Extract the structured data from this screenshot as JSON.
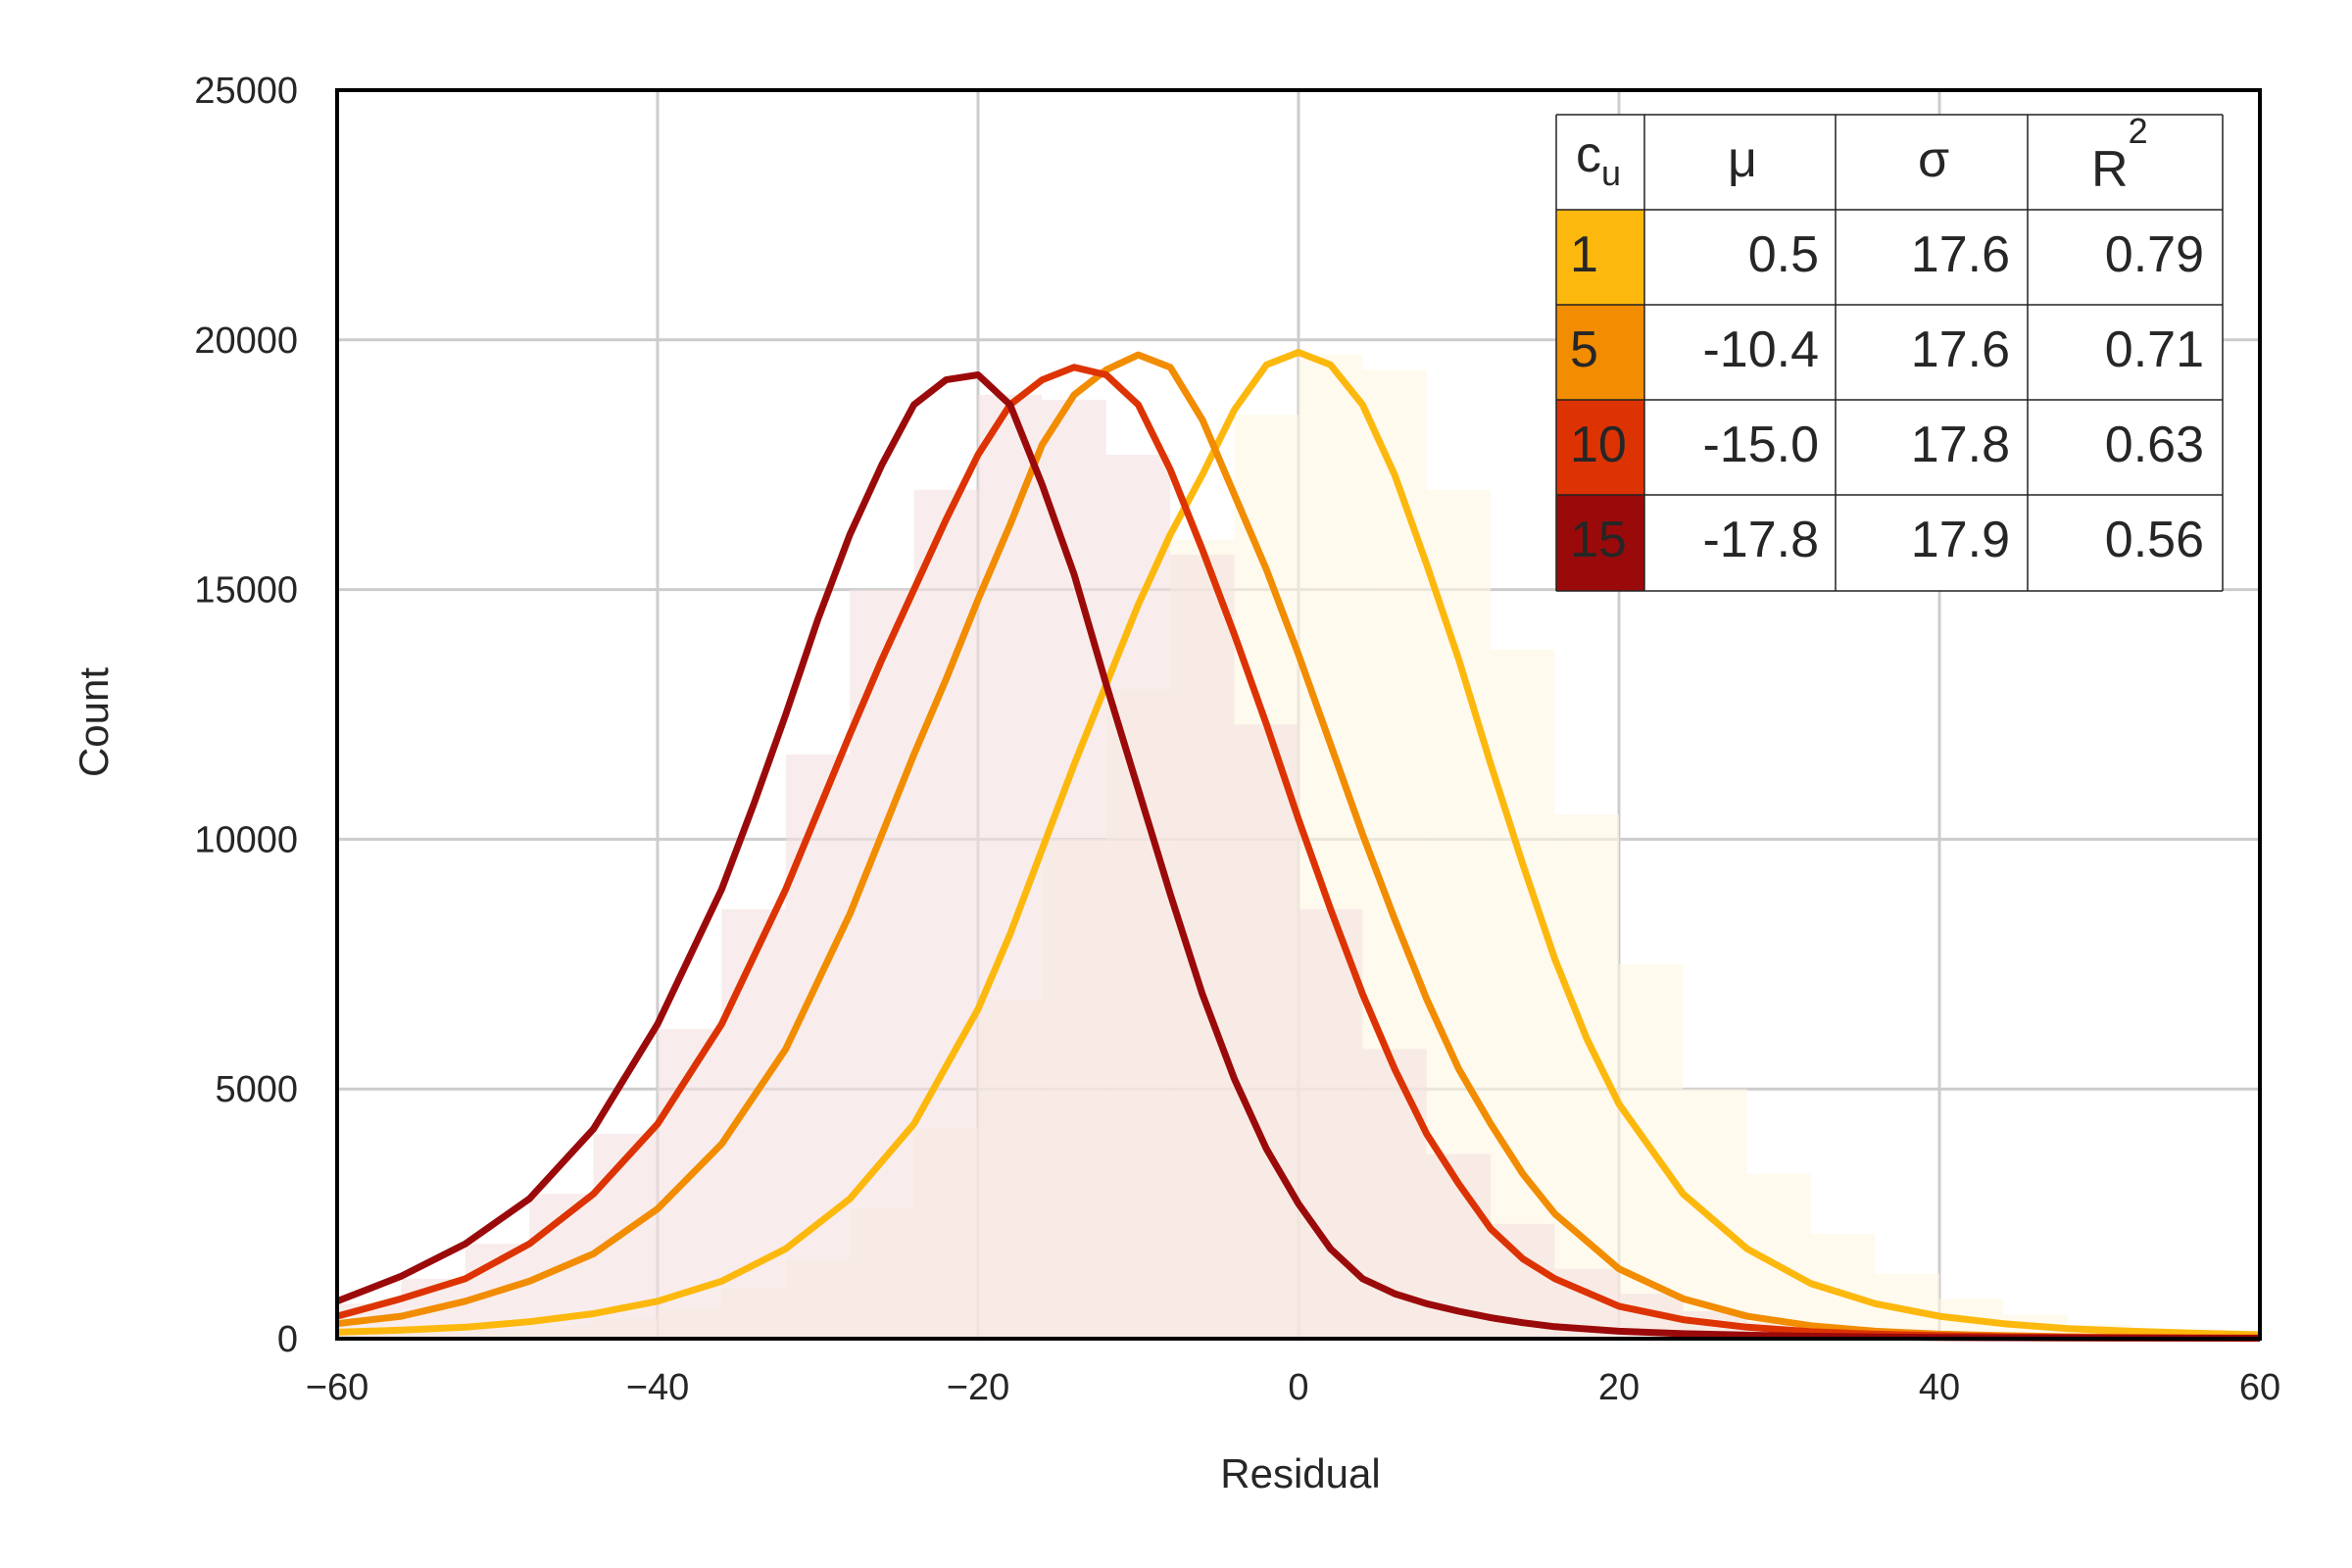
{
  "chart_data": {
    "type": "line",
    "title": "",
    "xlabel": "Residual",
    "ylabel": "Count",
    "xlim": [
      -60,
      60
    ],
    "ylim": [
      0,
      25000
    ],
    "xticks": [
      -60,
      -40,
      -20,
      0,
      20,
      40,
      60
    ],
    "xtick_labels": [
      "−60",
      "−40",
      "−20",
      "0",
      "20",
      "40",
      "60"
    ],
    "yticks": [
      0,
      5000,
      10000,
      15000,
      20000,
      25000
    ],
    "ytick_labels": [
      "0",
      "5000",
      "10000",
      "15000",
      "20000",
      "25000"
    ],
    "grid": true,
    "legend_placement": "top-right",
    "histograms": [
      {
        "cu": "1",
        "color": "#fff6e3",
        "x": [
          -60,
          -56,
          -52,
          -48,
          -44,
          -40,
          -36,
          -32,
          -28,
          -24,
          -20,
          -16,
          -12,
          -8,
          -4,
          0,
          4,
          8,
          12,
          16,
          20,
          24,
          28,
          32,
          36,
          40,
          44,
          48,
          52,
          56
        ],
        "values": [
          100,
          130,
          180,
          260,
          400,
          640,
          1000,
          1600,
          2600,
          4200,
          6800,
          10000,
          13000,
          16000,
          18500,
          19700,
          19400,
          17000,
          13800,
          10500,
          7500,
          5000,
          3300,
          2100,
          1300,
          800,
          480,
          280,
          160,
          100
        ]
      },
      {
        "cu": "15",
        "color": "#f3e1df",
        "x": [
          -60,
          -56,
          -52,
          -48,
          -44,
          -40,
          -36,
          -32,
          -28,
          -24,
          -20,
          -16,
          -12,
          -8,
          -4,
          0,
          4,
          8,
          12,
          16,
          20,
          24,
          28,
          32,
          36,
          40,
          44,
          48,
          52,
          56
        ],
        "values": [
          700,
          1200,
          1900,
          2900,
          4100,
          6200,
          8600,
          11700,
          15000,
          17000,
          18900,
          18800,
          17700,
          15700,
          12300,
          8600,
          5800,
          3700,
          2300,
          1400,
          900,
          550,
          330,
          200,
          120,
          80,
          50,
          40,
          30,
          20
        ]
      }
    ],
    "series": [
      {
        "name": "1",
        "color": "#fdb80e",
        "x": [
          -60,
          -56,
          -52,
          -48,
          -44,
          -40,
          -36,
          -32,
          -28,
          -24,
          -20,
          -18,
          -16,
          -14,
          -12,
          -10,
          -8,
          -6,
          -4,
          -2,
          0,
          2,
          4,
          6,
          8,
          10,
          12,
          14,
          16,
          18,
          20,
          24,
          28,
          32,
          36,
          40,
          44,
          48,
          52,
          56,
          60
        ],
        "values": [
          130,
          170,
          230,
          340,
          500,
          750,
          1150,
          1800,
          2800,
          4300,
          6600,
          8100,
          9800,
          11500,
          13100,
          14700,
          16100,
          17300,
          18600,
          19500,
          19750,
          19500,
          18700,
          17300,
          15500,
          13600,
          11500,
          9500,
          7600,
          6000,
          4700,
          2900,
          1800,
          1100,
          700,
          450,
          300,
          200,
          150,
          110,
          80
        ]
      },
      {
        "name": "5",
        "color": "#f28c00",
        "x": [
          -60,
          -56,
          -52,
          -48,
          -44,
          -40,
          -36,
          -32,
          -28,
          -24,
          -22,
          -20,
          -18,
          -16,
          -14,
          -12,
          -10,
          -8,
          -6,
          -4,
          -2,
          0,
          2,
          4,
          6,
          8,
          10,
          12,
          14,
          16,
          20,
          24,
          28,
          32,
          36,
          40,
          44,
          48,
          52,
          56,
          60
        ],
        "values": [
          300,
          450,
          750,
          1150,
          1700,
          2600,
          3900,
          5800,
          8500,
          11700,
          13200,
          14800,
          16300,
          17900,
          18900,
          19400,
          19700,
          19450,
          18400,
          16900,
          15400,
          13700,
          11900,
          10100,
          8400,
          6800,
          5400,
          4300,
          3300,
          2500,
          1400,
          800,
          450,
          260,
          150,
          90,
          60,
          40,
          30,
          20,
          15
        ]
      },
      {
        "name": "10",
        "color": "#dd3303",
        "x": [
          -60,
          -56,
          -52,
          -48,
          -44,
          -40,
          -36,
          -32,
          -28,
          -26,
          -24,
          -22,
          -20,
          -18,
          -16,
          -14,
          -12,
          -10,
          -8,
          -6,
          -4,
          -2,
          0,
          2,
          4,
          6,
          8,
          10,
          12,
          14,
          16,
          20,
          24,
          28,
          32,
          36,
          40,
          44,
          48,
          52,
          56,
          60
        ],
        "values": [
          450,
          800,
          1200,
          1900,
          2900,
          4300,
          6300,
          9000,
          12100,
          13600,
          15000,
          16400,
          17700,
          18700,
          19200,
          19450,
          19300,
          18700,
          17400,
          15800,
          14100,
          12300,
          10400,
          8600,
          6900,
          5400,
          4100,
          3100,
          2200,
          1600,
          1200,
          650,
          380,
          230,
          140,
          90,
          60,
          40,
          30,
          20,
          15,
          12
        ]
      },
      {
        "name": "15",
        "color": "#9b0a0a",
        "x": [
          -60,
          -56,
          -52,
          -48,
          -44,
          -40,
          -36,
          -34,
          -32,
          -30,
          -28,
          -26,
          -24,
          -22,
          -20,
          -18,
          -16,
          -14,
          -12,
          -10,
          -8,
          -6,
          -4,
          -2,
          0,
          2,
          4,
          6,
          8,
          10,
          12,
          14,
          16,
          20,
          24,
          28,
          32,
          36,
          40,
          44,
          48,
          52,
          56,
          60
        ],
        "values": [
          750,
          1250,
          1900,
          2800,
          4200,
          6300,
          9000,
          10700,
          12500,
          14400,
          16100,
          17500,
          18700,
          19200,
          19300,
          18700,
          17100,
          15300,
          13100,
          11000,
          8900,
          6900,
          5200,
          3800,
          2700,
          1800,
          1200,
          900,
          700,
          550,
          420,
          320,
          240,
          150,
          100,
          70,
          50,
          35,
          25,
          20,
          15,
          12,
          10,
          8
        ]
      }
    ],
    "table": {
      "headers": {
        "cu_main": "c",
        "cu_sub": "u",
        "mu": "μ",
        "sigma": "σ",
        "r2_main": "R",
        "r2_sup": "2"
      },
      "rows": [
        {
          "cu": "1",
          "mu": "0.5",
          "sigma": "17.6",
          "r2": "0.79",
          "color": "#fdb80e"
        },
        {
          "cu": "5",
          "mu": "-10.4",
          "sigma": "17.6",
          "r2": "0.71",
          "color": "#f28c00"
        },
        {
          "cu": "10",
          "mu": "-15.0",
          "sigma": "17.8",
          "r2": "0.63",
          "color": "#dd3303"
        },
        {
          "cu": "15",
          "mu": "-17.8",
          "sigma": "17.9",
          "r2": "0.56",
          "color": "#9b0a0a"
        }
      ]
    }
  }
}
